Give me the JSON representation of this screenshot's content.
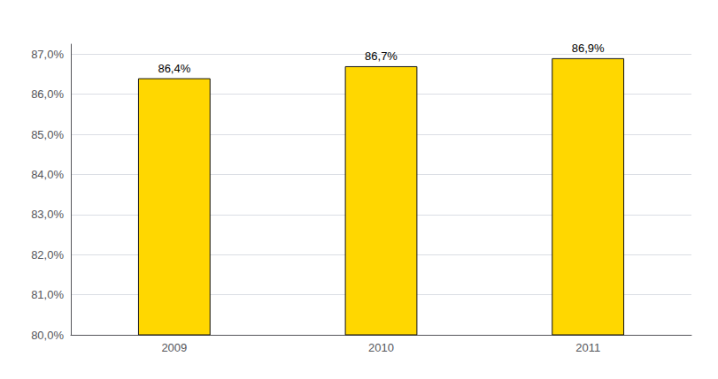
{
  "chart_data": {
    "type": "bar",
    "categories": [
      "2009",
      "2010",
      "2011"
    ],
    "values": [
      86.4,
      86.7,
      86.9
    ],
    "value_labels": [
      "86,4%",
      "86,7%",
      "86,9%"
    ],
    "data_labels": true,
    "color": "#FFD700",
    "ylim": [
      80.0,
      87.25
    ],
    "yticks": [
      {
        "value": 80.0,
        "label": "80,0%"
      },
      {
        "value": 81.0,
        "label": "81,0%"
      },
      {
        "value": 82.0,
        "label": "82,0%"
      },
      {
        "value": 83.0,
        "label": "83,0%"
      },
      {
        "value": 84.0,
        "label": "84,0%"
      },
      {
        "value": 85.0,
        "label": "85,0%"
      },
      {
        "value": 86.0,
        "label": "86,0%"
      },
      {
        "value": 87.0,
        "label": "87,0%"
      }
    ],
    "grid": true
  }
}
